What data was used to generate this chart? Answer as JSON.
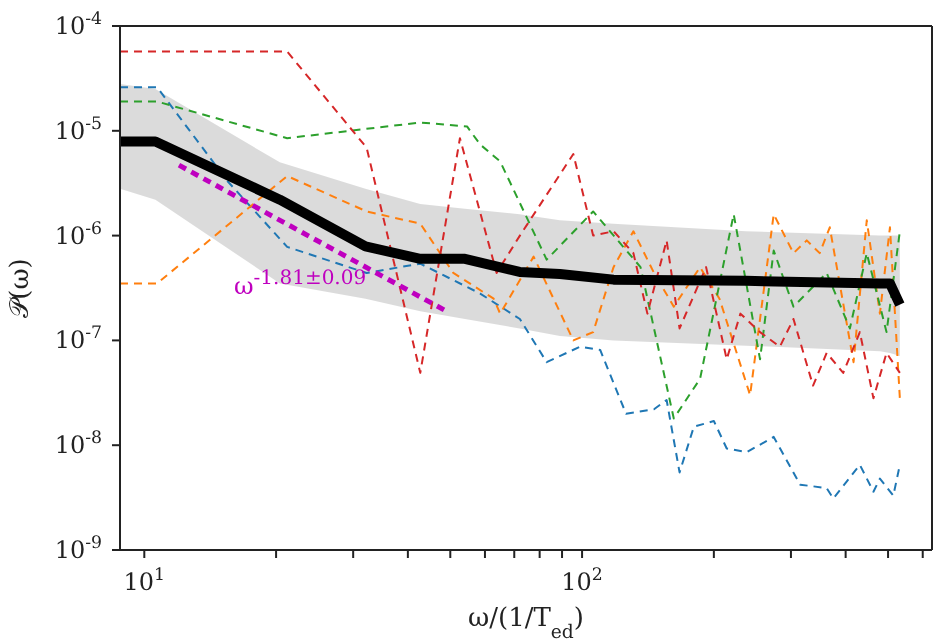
{
  "chart_data": {
    "type": "line",
    "xlabel": "ω/(1/T$_{ed}$)",
    "ylabel": "𝒫(ω)",
    "log": "xy",
    "marker": "none",
    "xlim": [
      8.8,
      630
    ],
    "ylim": [
      1e-09,
      0.0001
    ],
    "xticks": [
      {
        "value": 10,
        "label": "10$^{1}$"
      },
      {
        "value": 20,
        "label": null
      },
      {
        "value": 30,
        "label": null
      },
      {
        "value": 40,
        "label": null
      },
      {
        "value": 50,
        "label": null
      },
      {
        "value": 60,
        "label": null
      },
      {
        "value": 70,
        "label": null
      },
      {
        "value": 80,
        "label": null
      },
      {
        "value": 90,
        "label": null
      },
      {
        "value": 100,
        "label": "10$^{2}$"
      },
      {
        "value": 200,
        "label": null
      },
      {
        "value": 300,
        "label": null
      },
      {
        "value": 400,
        "label": null
      },
      {
        "value": 500,
        "label": null
      },
      {
        "value": 600,
        "label": null
      }
    ],
    "yticks": [
      {
        "value": 1e-09,
        "label": "10$^{-9}$"
      },
      {
        "value": 1e-08,
        "label": "10$^{-8}$"
      },
      {
        "value": 1e-07,
        "label": "10$^{-7}$"
      },
      {
        "value": 1e-06,
        "label": "10$^{-6}$"
      },
      {
        "value": 1e-05,
        "label": "10$^{-5}$"
      },
      {
        "value": 0.0001,
        "label": "10$^{-4}$"
      }
    ],
    "series": [
      {
        "color": "#1f77b4",
        "line_style": "dashed",
        "x": [
          8.8,
          10.7,
          15.5,
          21.2,
          32.2,
          42.7,
          58.5,
          72.1,
          83,
          98.9,
          110,
          126,
          146,
          156,
          167,
          180,
          200,
          214,
          238,
          274,
          315,
          362,
          375,
          431,
          463,
          479,
          514,
          532
        ],
        "values": [
          2.6e-05,
          2.6e-05,
          3.3e-06,
          7.8e-07,
          4.4e-07,
          5.4e-07,
          2.8e-07,
          1.6e-07,
          6.2e-08,
          8.7e-08,
          8.1e-08,
          2e-08,
          2.2e-08,
          2.7e-08,
          5.5e-09,
          1.5e-08,
          1.7e-08,
          9.3e-09,
          8.6e-09,
          1.2e-08,
          4.2e-09,
          3.9e-09,
          3.1e-09,
          6.5e-09,
          3.6e-09,
          4.8e-09,
          3.3e-09,
          6.5e-09
        ]
      },
      {
        "color": "#ff7f0e",
        "line_style": "dashed",
        "x": [
          8.8,
          10.7,
          21.2,
          32.2,
          42.7,
          50.8,
          62.8,
          65,
          77.5,
          95.5,
          106,
          118,
          131,
          146,
          162,
          186,
          206,
          242,
          274,
          304,
          326,
          349,
          368,
          417,
          447,
          479,
          505,
          532
        ],
        "values": [
          3.5e-07,
          3.5e-07,
          3.7e-06,
          1.7e-06,
          1.3e-06,
          4.4e-07,
          2.5e-07,
          1.8e-07,
          6.3e-07,
          1e-07,
          1.2e-07,
          5e-07,
          1.1e-06,
          4.4e-07,
          2.1e-07,
          5e-07,
          2.5e-07,
          3e-08,
          1.6e-06,
          6.8e-07,
          9e-07,
          6.8e-07,
          1.2e-06,
          6.2e-08,
          1.4e-06,
          1.8e-07,
          1.2e-06,
          2.8e-08
        ]
      },
      {
        "color": "#2ca02c",
        "line_style": "dashed",
        "x": [
          8.8,
          10.7,
          21.2,
          42.7,
          54.6,
          58.5,
          65,
          83,
          106,
          136,
          162,
          186,
          222,
          255,
          274,
          304,
          362,
          409,
          447,
          496,
          532
        ],
        "values": [
          1.9e-05,
          1.9e-05,
          8.5e-06,
          1.2e-05,
          1.1e-05,
          7.4e-06,
          5.1e-06,
          5.9e-07,
          1.7e-06,
          5e-07,
          1.8e-08,
          4.3e-08,
          1.6e-06,
          6.6e-08,
          7.2e-07,
          2.1e-07,
          4.4e-07,
          1.3e-07,
          6.8e-07,
          1.2e-07,
          1.1e-06
        ]
      },
      {
        "color": "#d62728",
        "line_style": "dashed",
        "x": [
          8.8,
          21.2,
          32.2,
          42.7,
          52.6,
          63.8,
          72.1,
          95.5,
          106,
          118,
          131,
          141,
          156,
          167,
          192,
          214,
          230,
          255,
          283,
          304,
          337,
          362,
          395,
          431,
          463,
          496,
          532
        ],
        "values": [
          5.7e-05,
          5.7e-05,
          6.9e-06,
          4.9e-08,
          8.5e-06,
          4.4e-07,
          1e-06,
          6e-06,
          1e-06,
          1.1e-06,
          6.8e-07,
          1.8e-07,
          9e-07,
          1.3e-07,
          5e-07,
          6.6e-08,
          1.8e-07,
          1.2e-07,
          8.7e-08,
          1.6e-07,
          3.7e-08,
          7.6e-08,
          4.9e-08,
          1.2e-07,
          2.8e-08,
          7.6e-08,
          4.9e-08
        ]
      },
      {
        "color": "#000000",
        "line_style": "solid",
        "x": [
          8.8,
          10.6,
          20.4,
          32,
          42.7,
          54,
          72,
          89,
          118,
          237,
          479,
          505,
          532
        ],
        "values": [
          7.9e-06,
          7.9e-06,
          2.2e-06,
          7.9e-07,
          6e-07,
          6e-07,
          4.5e-07,
          4.3e-07,
          3.8e-07,
          3.7e-07,
          3.5e-07,
          3.5e-07,
          2.2e-07
        ],
        "lower": [
          2.8e-06,
          2.2e-06,
          3.5e-07,
          2.5e-07,
          1.9e-07,
          1.6e-07,
          1.3e-07,
          1.1e-07,
          1e-07,
          8.9e-08,
          7.9e-08,
          7.6e-08,
          7.1e-08
        ],
        "upper": [
          2.8e-05,
          2.5e-05,
          5e-06,
          2.8e-06,
          2e-06,
          1.8e-06,
          1.6e-06,
          1.4e-06,
          1.3e-06,
          1.1e-06,
          1e-06,
          1e-06,
          1e-06
        ]
      },
      {
        "color": "#bf00bf",
        "line_style": "dashed",
        "x": [
          12,
          49
        ],
        "values": [
          4.7e-06,
          1.9e-07
        ]
      }
    ],
    "annotations": [
      "ω$^{-1.81±0.09}$"
    ]
  }
}
